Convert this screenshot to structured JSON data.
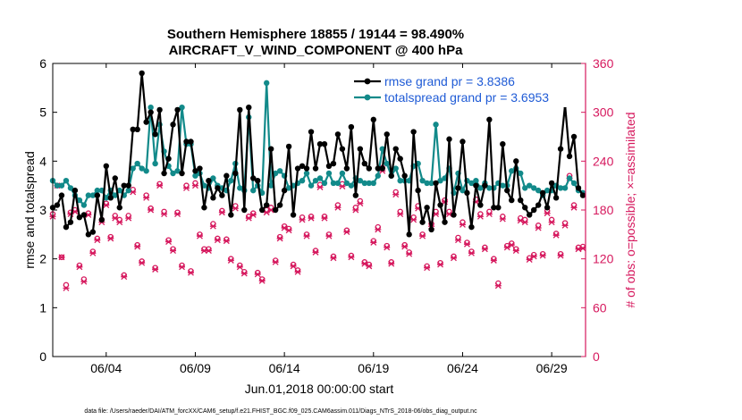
{
  "colors": {
    "rmse": "#000000",
    "spread": "#128A8A",
    "obs": "#D6195E",
    "legend_text": "#1F5BD6",
    "axis": "#000000"
  },
  "chart_data": {
    "type": "line",
    "title": "Southern Hemisphere 18855 / 19144 = 98.490%",
    "subtitle": "AIRCRAFT_V_WIND_COMPONENT @ 400 hPa",
    "xlabel": "Jun.01,2018 00:00:00 start",
    "ylabel_left": "rmse and totalspread",
    "ylabel_right": "# of obs: o=possible; ×=assimilated",
    "xlim": [
      1.0,
      30.9
    ],
    "ylim_left": [
      0,
      6
    ],
    "ylim_right": [
      0,
      360
    ],
    "xticks": [
      4,
      9,
      14,
      19,
      24,
      29
    ],
    "xtick_labels": [
      "06/04",
      "06/09",
      "06/14",
      "06/19",
      "06/24",
      "06/29"
    ],
    "yticks_left": [
      0,
      1,
      2,
      3,
      4,
      5,
      6
    ],
    "yticks_right": [
      0,
      60,
      120,
      180,
      240,
      300,
      360
    ],
    "legend": [
      {
        "name": "rmse grand pr = 3.8386"
      },
      {
        "name": "totalspread grand pr = 3.6953"
      }
    ],
    "x": [
      1.0,
      1.25,
      1.5,
      1.75,
      2.0,
      2.25,
      2.5,
      2.75,
      3.0,
      3.25,
      3.5,
      3.75,
      4.0,
      4.25,
      4.5,
      4.75,
      5.0,
      5.25,
      5.5,
      5.75,
      6.0,
      6.25,
      6.5,
      6.75,
      7.0,
      7.25,
      7.5,
      7.75,
      8.0,
      8.25,
      8.5,
      8.75,
      9.0,
      9.25,
      9.5,
      9.75,
      10.0,
      10.25,
      10.5,
      10.75,
      11.0,
      11.25,
      11.5,
      11.75,
      12.0,
      12.25,
      12.5,
      12.75,
      13.0,
      13.25,
      13.5,
      13.75,
      14.0,
      14.25,
      14.5,
      14.75,
      15.0,
      15.25,
      15.5,
      15.75,
      16.0,
      16.25,
      16.5,
      16.75,
      17.0,
      17.25,
      17.5,
      17.75,
      18.0,
      18.25,
      18.5,
      18.75,
      19.0,
      19.25,
      19.5,
      19.75,
      20.0,
      20.25,
      20.5,
      20.75,
      21.0,
      21.25,
      21.5,
      21.75,
      22.0,
      22.25,
      22.5,
      22.75,
      23.0,
      23.25,
      23.5,
      23.75,
      24.0,
      24.25,
      24.5,
      24.75,
      25.0,
      25.25,
      25.5,
      25.75,
      26.0,
      26.25,
      26.5,
      26.75,
      27.0,
      27.25,
      27.5,
      27.75,
      28.0,
      28.25,
      28.5,
      28.75,
      29.0,
      29.25,
      29.5,
      29.75,
      30.0,
      30.25,
      30.5,
      30.75
    ],
    "series": [
      {
        "name": "rmse",
        "axis": "left",
        "values": [
          3.05,
          3.1,
          3.3,
          2.65,
          2.75,
          3.4,
          2.85,
          2.9,
          2.5,
          2.55,
          3.3,
          2.8,
          3.9,
          3.25,
          3.65,
          3.05,
          3.5,
          3.5,
          4.65,
          4.65,
          5.8,
          4.8,
          5.0,
          4.55,
          5.05,
          3.75,
          4.05,
          4.75,
          5.05,
          3.75,
          4.4,
          4.4,
          3.8,
          3.85,
          3.05,
          3.6,
          3.25,
          3.45,
          3.3,
          3.7,
          2.9,
          3.75,
          5.05,
          3.0,
          5.1,
          3.65,
          3.6,
          3.0,
          3.1,
          4.25,
          3.0,
          3.1,
          3.4,
          4.3,
          2.9,
          3.85,
          3.9,
          3.85,
          4.6,
          3.85,
          4.35,
          4.35,
          3.9,
          3.95,
          4.55,
          4.25,
          3.85,
          4.7,
          3.3,
          4.25,
          3.95,
          3.85,
          4.85,
          3.85,
          3.85,
          4.55,
          3.7,
          4.25,
          4.05,
          3.7,
          2.5,
          4.6,
          3.4,
          2.75,
          3.05,
          2.6,
          3.55,
          3.1,
          2.75,
          4.45,
          2.9,
          3.45,
          4.4,
          3.35,
          2.65,
          3.5,
          3.1,
          3.5,
          4.85,
          3.05,
          3.05,
          4.35,
          3.4,
          3.2,
          4.0,
          3.2,
          3.05,
          2.9,
          3.0,
          3.1,
          3.35,
          3.05,
          3.55,
          3.25,
          4.25,
          5.15,
          4.1,
          4.5,
          3.45,
          3.3
        ]
      },
      {
        "name": "totalspread",
        "axis": "left",
        "values": [
          3.6,
          3.5,
          3.5,
          3.6,
          3.45,
          3.3,
          3.2,
          3.1,
          3.3,
          3.3,
          3.4,
          3.4,
          3.25,
          3.4,
          3.3,
          3.4,
          3.3,
          3.4,
          3.85,
          3.95,
          3.85,
          3.8,
          5.1,
          3.95,
          4.75,
          4.2,
          3.9,
          3.75,
          3.8,
          5.1,
          4.35,
          4.35,
          3.7,
          3.75,
          3.5,
          3.45,
          3.65,
          3.5,
          3.45,
          3.4,
          3.6,
          3.95,
          3.45,
          3.4,
          4.9,
          3.4,
          3.5,
          3.35,
          5.6,
          3.5,
          3.75,
          3.8,
          3.7,
          3.45,
          3.5,
          3.55,
          3.6,
          3.75,
          3.5,
          3.6,
          3.65,
          3.55,
          3.75,
          3.55,
          3.55,
          3.75,
          3.55,
          3.5,
          3.65,
          3.6,
          3.55,
          3.55,
          3.55,
          3.7,
          4.25,
          3.95,
          3.7,
          3.85,
          3.6,
          3.6,
          3.6,
          3.9,
          3.95,
          3.6,
          3.55,
          3.55,
          4.75,
          3.6,
          3.65,
          3.85,
          3.35,
          3.75,
          3.4,
          3.6,
          3.55,
          3.6,
          3.45,
          3.55,
          3.45,
          3.45,
          3.55,
          3.5,
          3.5,
          3.8,
          3.85,
          3.75,
          3.45,
          3.5,
          3.45,
          3.4,
          3.3,
          3.4,
          3.4,
          3.5,
          3.45,
          3.45,
          3.65,
          3.55,
          3.4,
          3.35
        ]
      },
      {
        "name": "obs possible",
        "axis": "right",
        "marker": "o",
        "values": [
          175,
          210,
          122,
          88,
          177,
          180,
          112,
          95,
          176,
          129,
          145,
          168,
          188,
          147,
          173,
          168,
          100,
          173,
          205,
          137,
          117,
          198,
          182,
          109,
          212,
          178,
          143,
          132,
          177,
          112,
          210,
          105,
          213,
          150,
          132,
          132,
          163,
          145,
          179,
          144,
          120,
          185,
          112,
          104,
          172,
          176,
          103,
          95,
          180,
          183,
          118,
          147,
          160,
          157,
          113,
          106,
          171,
          150,
          172,
          130,
          211,
          172,
          150,
          123,
          186,
          212,
          155,
          124,
          183,
          191,
          116,
          113,
          142,
          159,
          232,
          136,
          116,
          202,
          178,
          137,
          128,
          171,
          185,
          150,
          111,
          163,
          178,
          115,
          192,
          178,
          123,
          146,
          165,
          140,
          129,
          193,
          175,
          134,
          178,
          120,
          90,
          172,
          136,
          139,
          132,
          170,
          168,
          121,
          125,
          161,
          126,
          179,
          168,
          151,
          126,
          164,
          222,
          186,
          134,
          135
        ]
      },
      {
        "name": "obs assimilated",
        "axis": "right",
        "marker": "x",
        "values": [
          172,
          210,
          122,
          84,
          175,
          178,
          110,
          92,
          174,
          127,
          143,
          165,
          186,
          145,
          170,
          165,
          98,
          170,
          202,
          135,
          115,
          195,
          180,
          107,
          210,
          175,
          141,
          130,
          175,
          110,
          207,
          103,
          210,
          148,
          130,
          130,
          160,
          143,
          177,
          142,
          118,
          182,
          110,
          102,
          170,
          174,
          101,
          93,
          177,
          180,
          116,
          145,
          158,
          155,
          111,
          104,
          168,
          148,
          170,
          128,
          208,
          170,
          148,
          121,
          183,
          209,
          153,
          122,
          180,
          188,
          114,
          111,
          140,
          156,
          228,
          134,
          114,
          199,
          175,
          135,
          126,
          168,
          182,
          148,
          109,
          160,
          175,
          113,
          190,
          175,
          121,
          143,
          162,
          138,
          127,
          190,
          172,
          132,
          175,
          118,
          87,
          169,
          134,
          137,
          130,
          167,
          165,
          119,
          123,
          158,
          124,
          176,
          165,
          149,
          124,
          161,
          219,
          183,
          132,
          133
        ]
      }
    ]
  },
  "footnote": "data file: /Users/raeder/DAI/ATM_forcXX/CAM6_setup/f.e21.FHIST_BGC.f09_025.CAM6assim.011/Diags_NTrS_2018-06/obs_diag_output.nc"
}
